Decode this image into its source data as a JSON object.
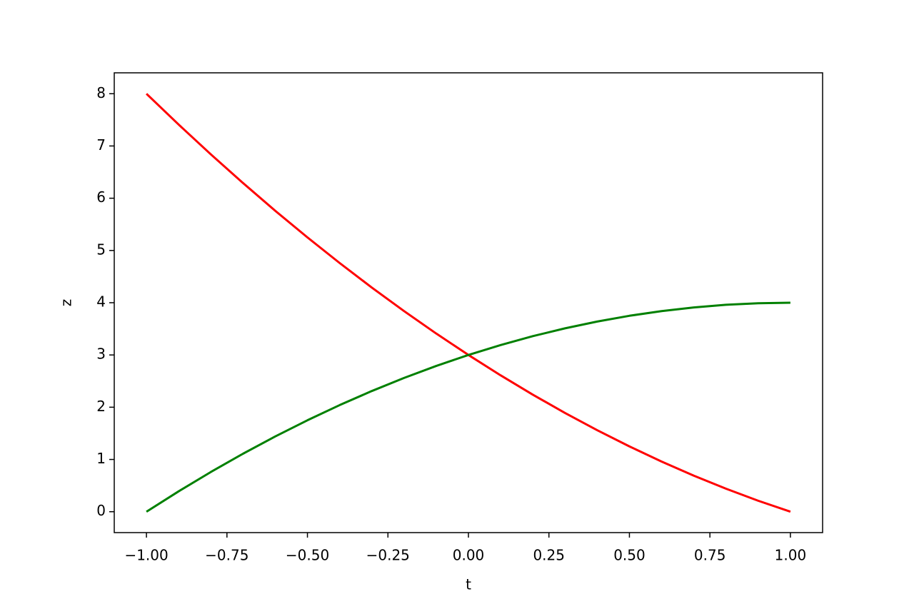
{
  "chart_data": {
    "type": "line",
    "x_label": "t",
    "y_label": "z",
    "x": [
      -1,
      -0.9,
      -0.8,
      -0.7,
      -0.6,
      -0.5,
      -0.4,
      -0.3,
      -0.2,
      -0.1,
      0,
      0.1,
      0.2,
      0.3,
      0.4,
      0.5,
      0.6,
      0.7,
      0.8,
      0.9,
      1
    ],
    "series": [
      {
        "color": "#ff0000",
        "values": [
          8,
          7.41,
          6.84,
          6.29,
          5.76,
          5.25,
          4.76,
          4.29,
          3.84,
          3.41,
          3,
          2.61,
          2.24,
          1.89,
          1.56,
          1.25,
          0.96,
          0.69,
          0.44,
          0.21,
          0
        ]
      },
      {
        "color": "#008000",
        "values": [
          0,
          0.39,
          0.76,
          1.11,
          1.44,
          1.75,
          2.04,
          2.31,
          2.56,
          2.79,
          3,
          3.19,
          3.36,
          3.51,
          3.64,
          3.75,
          3.84,
          3.91,
          3.96,
          3.99,
          4
        ]
      }
    ],
    "xlim": [
      -1.1,
      1.1
    ],
    "ylim": [
      -0.4,
      8.4
    ],
    "xticks": [
      {
        "value": -1,
        "label": "−1.00"
      },
      {
        "value": -0.75,
        "label": "−0.75"
      },
      {
        "value": -0.5,
        "label": "−0.50"
      },
      {
        "value": -0.25,
        "label": "−0.25"
      },
      {
        "value": 0,
        "label": "0.00"
      },
      {
        "value": 0.25,
        "label": "0.25"
      },
      {
        "value": 0.5,
        "label": "0.50"
      },
      {
        "value": 0.75,
        "label": "0.75"
      },
      {
        "value": 1,
        "label": "1.00"
      }
    ],
    "yticks": [
      0,
      1,
      2,
      3,
      4,
      5,
      6,
      7,
      8
    ],
    "grid": false
  }
}
